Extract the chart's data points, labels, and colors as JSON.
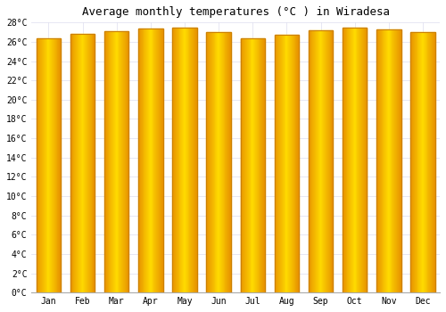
{
  "title": "Average monthly temperatures (°C ) in Wiradesa",
  "months": [
    "Jan",
    "Feb",
    "Mar",
    "Apr",
    "May",
    "Jun",
    "Jul",
    "Aug",
    "Sep",
    "Oct",
    "Nov",
    "Dec"
  ],
  "temperatures": [
    26.4,
    26.8,
    27.1,
    27.4,
    27.5,
    27.0,
    26.4,
    26.7,
    27.2,
    27.5,
    27.3,
    27.0
  ],
  "ylim": [
    0,
    28
  ],
  "yticks": [
    0,
    2,
    4,
    6,
    8,
    10,
    12,
    14,
    16,
    18,
    20,
    22,
    24,
    26,
    28
  ],
  "bar_color_center": "#FFE066",
  "bar_color_edge": "#E89010",
  "background_color": "#FFFFFF",
  "plot_bg_color": "#FFFFFF",
  "grid_color": "#DDDDEE",
  "title_fontsize": 9,
  "tick_fontsize": 7,
  "tick_font_family": "monospace",
  "bar_width": 0.72
}
